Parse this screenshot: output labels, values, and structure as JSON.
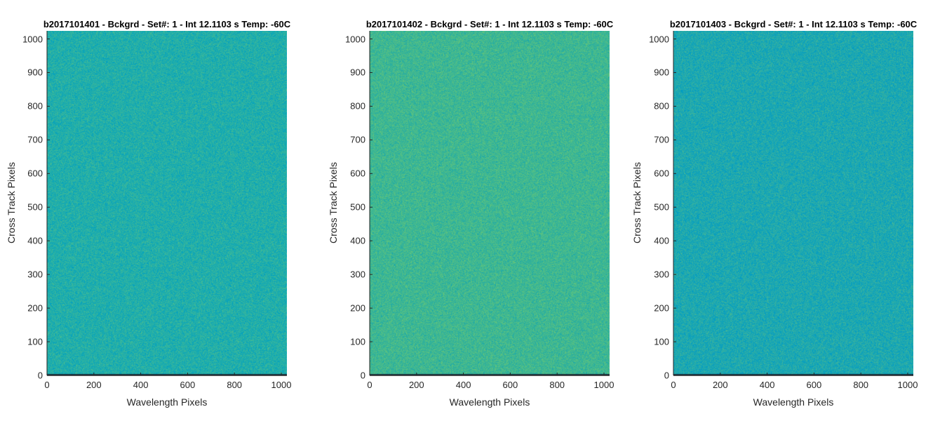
{
  "chart_data": [
    {
      "type": "heatmap",
      "title": "b2017101401 - Bckgrd - Set#: 1 - Int 12.1103 s Temp: -60C",
      "xlabel": "Wavelength Pixels",
      "ylabel": "Cross Track Pixels",
      "xlim": [
        0,
        1024
      ],
      "ylim": [
        0,
        1024
      ],
      "xticks": [
        "0",
        "200",
        "400",
        "600",
        "800",
        "1000"
      ],
      "yticks": [
        "0",
        "100",
        "200",
        "300",
        "400",
        "500",
        "600",
        "700",
        "800",
        "900",
        "1000"
      ],
      "colormap": "parula",
      "base_color": "#22aeaa",
      "description_hint": "uniform noisy dark-frame image, mostly teal"
    },
    {
      "type": "heatmap",
      "title": "b2017101402 - Bckgrd - Set#: 1 - Int 12.1103 s Temp: -60C",
      "xlabel": "Wavelength Pixels",
      "ylabel": "Cross Track Pixels",
      "xlim": [
        0,
        1024
      ],
      "ylim": [
        0,
        1024
      ],
      "xticks": [
        "0",
        "200",
        "400",
        "600",
        "800",
        "1000"
      ],
      "yticks": [
        "0",
        "100",
        "200",
        "300",
        "400",
        "500",
        "600",
        "700",
        "800",
        "900",
        "1000"
      ],
      "colormap": "parula",
      "base_color": "#3fb792",
      "description_hint": "uniform noisy dark-frame image, greener"
    },
    {
      "type": "heatmap",
      "title": "b2017101403 - Bckgrd - Set#: 1 - Int 12.1103 s Temp: -60C",
      "xlabel": "Wavelength Pixels",
      "ylabel": "Cross Track Pixels",
      "xlim": [
        0,
        1024
      ],
      "ylim": [
        0,
        1024
      ],
      "xticks": [
        "0",
        "200",
        "400",
        "600",
        "800",
        "1000"
      ],
      "yticks": [
        "0",
        "100",
        "200",
        "300",
        "400",
        "500",
        "600",
        "700",
        "800",
        "900",
        "1000"
      ],
      "colormap": "parula",
      "base_color": "#1ea8b0",
      "description_hint": "uniform noisy dark-frame image, teal-blue"
    }
  ]
}
